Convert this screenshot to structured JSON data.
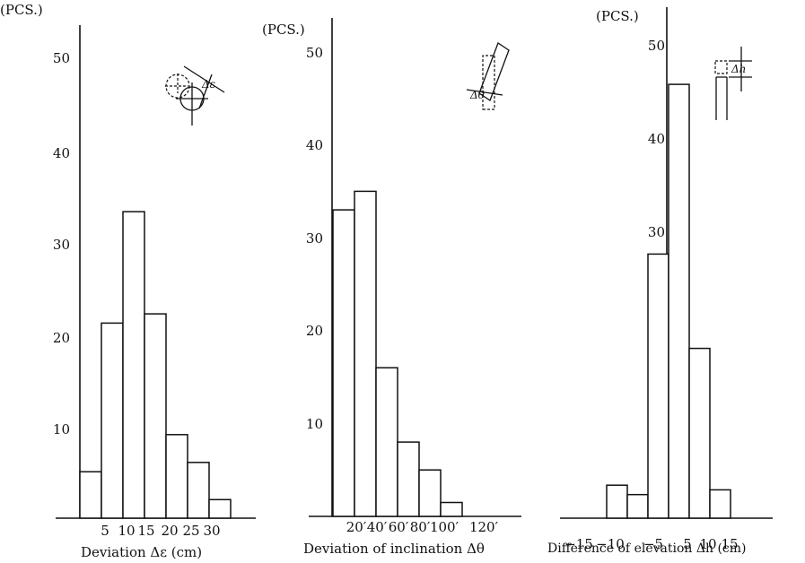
{
  "chart_data": [
    {
      "type": "bar",
      "unit_label": "(PCS.)",
      "xlabel": "Deviation Δε (cm)",
      "ylim": [
        0,
        50
      ],
      "yticks": [
        10,
        20,
        30,
        40,
        50
      ],
      "xticks": [
        "5",
        "10",
        "15",
        "20",
        "25",
        "30"
      ],
      "bin_edges": [
        0,
        5,
        10,
        15,
        20,
        25,
        30,
        35
      ],
      "values": [
        5,
        21,
        33,
        22,
        9,
        6,
        2
      ],
      "icon_label": "Δε"
    },
    {
      "type": "bar",
      "unit_label": "(PCS.)",
      "xlabel": "Deviation of inclination Δθ",
      "ylim": [
        0,
        50
      ],
      "yticks": [
        10,
        20,
        30,
        40,
        50
      ],
      "xticks": [
        "20′",
        "40′",
        "60′",
        "80′",
        "100′",
        "120′"
      ],
      "bin_edges": [
        0,
        20,
        40,
        60,
        80,
        100,
        120
      ],
      "values": [
        33,
        35,
        16,
        8,
        5,
        1.5
      ],
      "icon_label": "Δθ"
    },
    {
      "type": "bar",
      "unit_label": "(PCS.)",
      "xlabel": "Difference of elevation Δh (cm)",
      "ylim": [
        0,
        50
      ],
      "yticks": [
        10,
        20,
        30,
        40,
        50
      ],
      "xticks": [
        "−15",
        "−10",
        "−5",
        "5",
        "10",
        "15"
      ],
      "bin_edges": [
        -15,
        -10,
        -5,
        0,
        5,
        10,
        15
      ],
      "values": [
        3.5,
        2.5,
        28,
        46,
        18,
        3
      ],
      "icon_label": "Δh"
    }
  ]
}
